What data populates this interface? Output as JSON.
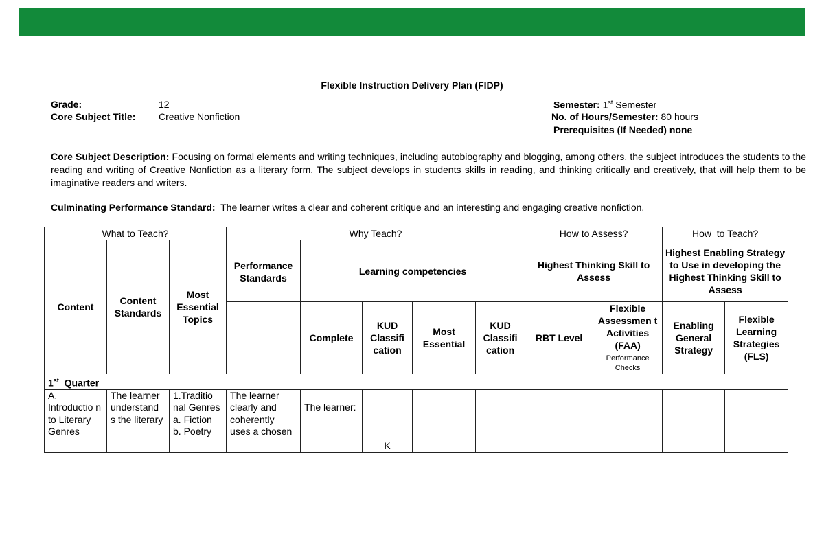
{
  "header_bar_color": "#128a3a",
  "title": "Flexible Instruction Delivery Plan (FIDP)",
  "info": {
    "grade_label": "Grade:",
    "grade": "12",
    "subject_label": "Core Subject Title:",
    "subject": "Creative Nonfiction",
    "semester_label": "Semester:",
    "semester_num": "1",
    "semester_sup": "st",
    "semester_rest": "Semester",
    "hours_label": "No. of Hours/Semester:",
    "hours": "80 hours",
    "prereq_label": "Prerequisites (If Needed)",
    "prereq": "none"
  },
  "description_label": "Core Subject Description:",
  "description": "Focusing on formal elements and writing techniques, including autobiography and blogging, among others, the subject introduces the students to the reading and writing of Creative Nonfiction as a literary form. The subject develops in students skills in reading, and thinking critically and creatively, that will help them to be imaginative readers and writers.",
  "standard_label": "Culminating Performance Standard:",
  "standard": "The learner writes a clear and coherent critique and an interesting and engaging creative nonfiction.",
  "table": {
    "groups": [
      "What to Teach?",
      "Why Teach?",
      "How to Assess?",
      "How  to Teach?"
    ],
    "content": "Content",
    "content_standards": "Content Standards",
    "most_essential_topics": "Most Essential Topics",
    "performance_standards": "Performance Standards",
    "learning_competencies": "Learning competencies",
    "highest_thinking": "Highest Thinking Skill to Assess",
    "highest_enabling": "Highest Enabling Strategy to Use in developing the Highest Thinking Skill to Assess",
    "complete": "Complete",
    "kud1": "KUD Classifi cation",
    "most_essential": "Most Essential",
    "kud2": "KUD Classifi cation",
    "rbt": "RBT Level",
    "faa": "Flexible Assessmen t Activities (FAA)",
    "performance_checks": "Performance Checks",
    "enabling_general": "Enabling General Strategy",
    "fls": "Flexible Learning Strategies (FLS)",
    "quarter_num": "1",
    "quarter_sup": "st",
    "quarter_label": "Quarter",
    "row": {
      "content": "A. Introductio n to Literary Genres",
      "content_standards": "The learner understand s the literary",
      "topics": "1.Traditio nal Genres a. Fiction b. Poetry",
      "performance": "The learner clearly and coherently uses a chosen",
      "complete": "The learner:",
      "kud": "K"
    }
  }
}
